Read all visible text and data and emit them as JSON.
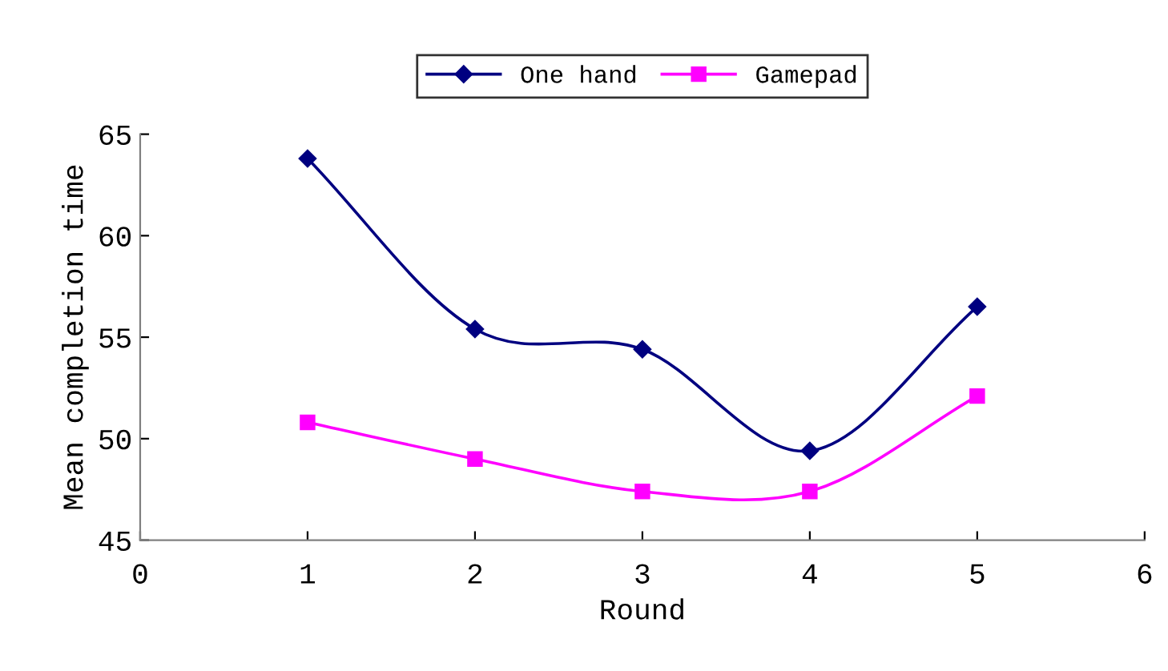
{
  "chart_data": {
    "type": "line",
    "xlabel": "Round",
    "ylabel": "Mean completion time",
    "x": [
      1,
      2,
      3,
      4,
      5
    ],
    "series": [
      {
        "name": "One hand",
        "color": "#000080",
        "marker": "diamond",
        "values": [
          63.8,
          55.4,
          54.4,
          49.4,
          56.5
        ]
      },
      {
        "name": "Gamepad",
        "color": "#ff00ff",
        "marker": "square",
        "values": [
          50.8,
          49.0,
          47.4,
          47.4,
          52.1
        ]
      }
    ],
    "xlim": [
      0,
      6
    ],
    "xticks": [
      0,
      1,
      2,
      3,
      4,
      5,
      6
    ],
    "ylim": [
      45,
      65
    ],
    "yticks": [
      45,
      50,
      55,
      60,
      65
    ],
    "grid": false,
    "legend": "top",
    "line_style": "solid"
  }
}
